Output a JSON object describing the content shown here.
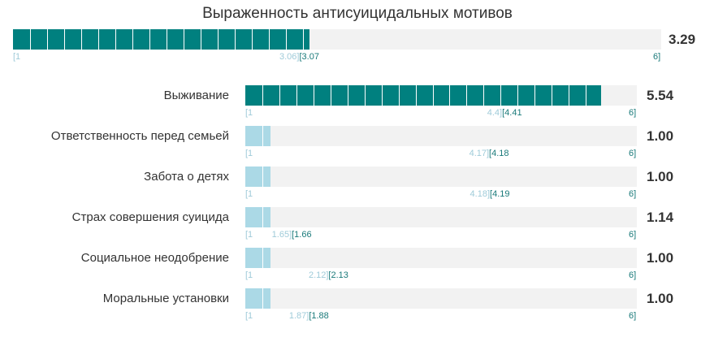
{
  "title": "Выраженность антисуицидальных мотивов",
  "colors": {
    "main": "#00807f",
    "sub": "#abd9e6",
    "track": "#f2f2f2",
    "light_text": "#9fcbd9",
    "dark_text": "#1a7a7a"
  },
  "scale": {
    "min": "[1",
    "max": "6]"
  },
  "chart_data": {
    "type": "bar",
    "title": "Выраженность антисуицидальных мотивов",
    "xlim": [
      1,
      6
    ],
    "total": {
      "name": "",
      "value": 3.29,
      "value_label": "3.29",
      "lo": "3.06]",
      "hi": "[3.07"
    },
    "categories": [
      "Выживание",
      "Ответственность перед семьей",
      "Забота о детях",
      "Страх совершения суицида",
      "Социальное неодобрение",
      "Моральные установки"
    ],
    "values": [
      5.54,
      1.0,
      1.0,
      1.14,
      1.0,
      1.0
    ],
    "value_labels": [
      "5.54",
      "1.00",
      "1.00",
      "1.14",
      "1.00",
      "1.00"
    ],
    "threshold_lo": [
      "4.4]",
      "4.17]",
      "4.18]",
      "1.65]",
      "2.12]",
      "1.87]"
    ],
    "threshold_hi": [
      "[4.41",
      "[4.18",
      "[4.19",
      "[1.66",
      "[2.13",
      "[1.88"
    ],
    "threshold_values": [
      4.4,
      4.17,
      4.18,
      1.65,
      2.12,
      1.87
    ]
  }
}
